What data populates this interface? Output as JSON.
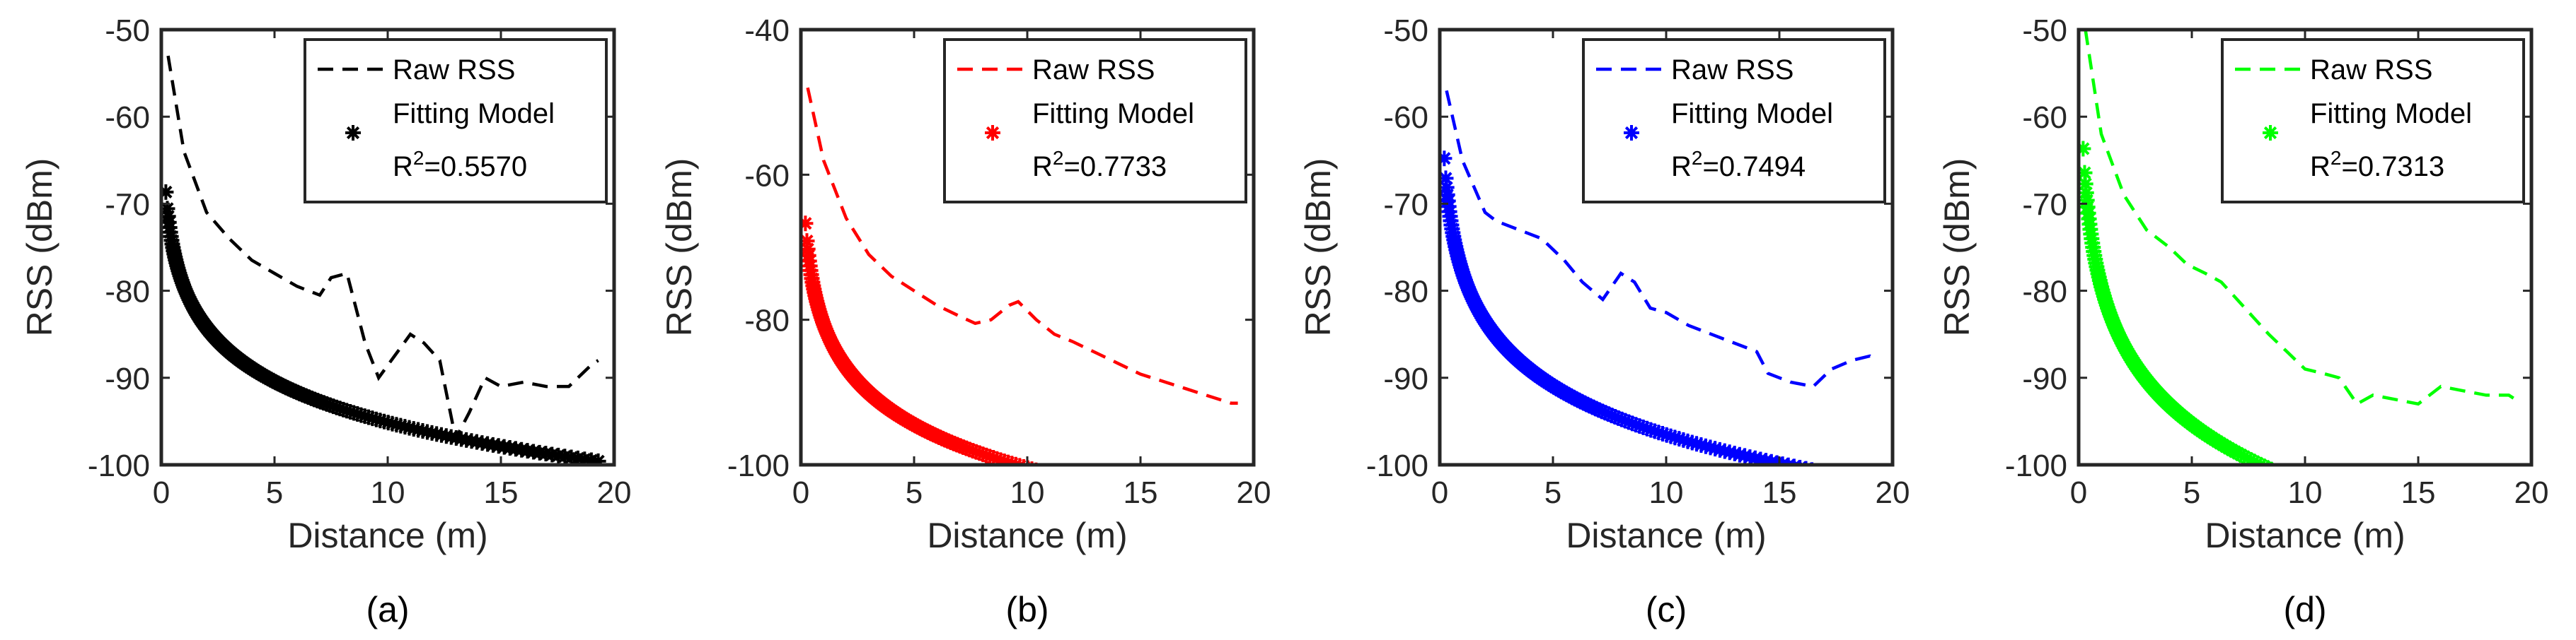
{
  "chart_data": [
    {
      "type": "line",
      "panel_label": "(a)",
      "xlabel": "Distance (m)",
      "ylabel": "RSS (dBm)",
      "xlim": [
        0,
        20
      ],
      "ylim": [
        -100,
        -50
      ],
      "xticks": [
        0,
        5,
        10,
        15,
        20
      ],
      "yticks": [
        -50,
        -60,
        -70,
        -80,
        -90,
        -100
      ],
      "color": "#000000",
      "legend": {
        "raw_label": "Raw RSS",
        "fit_label": "Fitting Model",
        "r2_prefix": "R",
        "r2_sup": "2",
        "r2_value": "=0.5570",
        "placement": "top-right"
      },
      "series": [
        {
          "name": "Raw RSS",
          "style": "dashed",
          "x": [
            0.3,
            1,
            2,
            3,
            4,
            5,
            6,
            7,
            7.5,
            8.2,
            9,
            9.6,
            10.3,
            11,
            11.6,
            12.3,
            13,
            13.6,
            14.3,
            15,
            16,
            17,
            18,
            19,
            19.3
          ],
          "y": [
            -53,
            -64,
            -71,
            -74,
            -76.5,
            -78,
            -79.5,
            -80.5,
            -78.5,
            -78,
            -86,
            -90,
            -87.5,
            -85,
            -86,
            -88,
            -97,
            -94,
            -90,
            -91,
            -90.5,
            -91,
            -91,
            -88.5,
            -88
          ]
        },
        {
          "name": "Fitting Model",
          "style": "marker-asterisk",
          "model": "log-distance",
          "a": -79.55,
          "b": -6.767,
          "x_range": [
            0.2,
            19.3
          ],
          "r2": 0.557
        }
      ]
    },
    {
      "type": "line",
      "panel_label": "(b)",
      "xlabel": "Distance (m)",
      "ylabel": "RSS (dBm)",
      "xlim": [
        0,
        20
      ],
      "ylim": [
        -100,
        -40
      ],
      "xticks": [
        0,
        5,
        10,
        15,
        20
      ],
      "yticks": [
        -40,
        -60,
        -80,
        -100
      ],
      "color": "#ff0000",
      "legend": {
        "raw_label": "Raw RSS",
        "fit_label": "Fitting Model",
        "r2_prefix": "R",
        "r2_sup": "2",
        "r2_value": "=0.7733",
        "placement": "top-right"
      },
      "series": [
        {
          "name": "Raw RSS",
          "style": "dashed",
          "x": [
            0.3,
            1,
            2,
            3,
            4,
            5,
            6,
            7,
            7.7,
            8.4,
            9.2,
            9.6,
            10.4,
            11.2,
            12,
            13,
            14,
            15,
            16,
            17,
            18,
            19,
            19.3
          ],
          "y": [
            -48,
            -58,
            -66,
            -71,
            -74,
            -76,
            -78,
            -79.5,
            -80.5,
            -80,
            -78,
            -77.5,
            -80,
            -82,
            -83,
            -84.5,
            -86,
            -87.5,
            -88.5,
            -89.5,
            -90.5,
            -91.5,
            -91.5
          ]
        },
        {
          "name": "Fitting Model",
          "style": "marker-asterisk",
          "model": "log-distance",
          "a": -80.58,
          "b": -8.62,
          "x_range": [
            0.2,
            19.3
          ],
          "r2": 0.7733
        }
      ]
    },
    {
      "type": "line",
      "panel_label": "(c)",
      "xlabel": "Distance (m)",
      "ylabel": "RSS (dBm)",
      "xlim": [
        0,
        20
      ],
      "ylim": [
        -100,
        -50
      ],
      "xticks": [
        0,
        5,
        10,
        15,
        20
      ],
      "yticks": [
        -50,
        -60,
        -70,
        -80,
        -90,
        -100
      ],
      "color": "#0000ff",
      "legend": {
        "raw_label": "Raw RSS",
        "fit_label": "Fitting Model",
        "r2_prefix": "R",
        "r2_sup": "2",
        "r2_value": "=0.7494",
        "placement": "top-right"
      },
      "series": [
        {
          "name": "Raw RSS",
          "style": "dashed",
          "x": [
            0.3,
            1,
            2,
            2.5,
            3.5,
            4.5,
            5.5,
            6.3,
            7.2,
            8,
            8.6,
            9.3,
            10,
            11,
            12,
            13,
            14,
            14.5,
            15.5,
            16.5,
            17.3,
            18.2,
            19,
            19.3
          ],
          "y": [
            -57,
            -65,
            -71,
            -72,
            -73,
            -74,
            -76.5,
            -79,
            -81,
            -78,
            -79,
            -82,
            -82.5,
            -84,
            -85,
            -86,
            -87,
            -89.5,
            -90.5,
            -91,
            -89,
            -88,
            -87.5,
            -88
          ]
        },
        {
          "name": "Fitting Model",
          "style": "marker-asterisk",
          "model": "log-distance",
          "a": -77.86,
          "b": -8.12,
          "x_range": [
            0.2,
            19.3
          ],
          "r2": 0.7494
        }
      ]
    },
    {
      "type": "line",
      "panel_label": "(d)",
      "xlabel": "Distance (m)",
      "ylabel": "RSS (dBm)",
      "xlim": [
        0,
        20
      ],
      "ylim": [
        -100,
        -50
      ],
      "xticks": [
        0,
        5,
        10,
        15,
        20
      ],
      "yticks": [
        -50,
        -60,
        -70,
        -80,
        -90,
        -100
      ],
      "color": "#00ff00",
      "legend": {
        "raw_label": "Raw RSS",
        "fit_label": "Fitting Model",
        "r2_prefix": "R",
        "r2_sup": "2",
        "r2_value": "=0.7313",
        "placement": "top-right"
      },
      "series": [
        {
          "name": "Raw RSS",
          "style": "dashed",
          "x": [
            0.3,
            1,
            2,
            3,
            4,
            4.8,
            5.6,
            6.3,
            7,
            7.7,
            8.4,
            9.2,
            10,
            10.8,
            11.5,
            12.3,
            13,
            14,
            15,
            16,
            17,
            18,
            19,
            19.3
          ],
          "y": [
            -50,
            -62,
            -69,
            -73,
            -75,
            -77,
            -78,
            -79,
            -81,
            -83,
            -85,
            -87,
            -89,
            -89.5,
            -90,
            -93,
            -92,
            -92.5,
            -93,
            -91,
            -91.5,
            -92,
            -92,
            -92.5
          ]
        },
        {
          "name": "Fitting Model",
          "style": "marker-asterisk",
          "model": "log-distance",
          "a": -79.5,
          "b": -9.83,
          "x_range": [
            0.2,
            19.3
          ],
          "r2": 0.7313
        }
      ]
    }
  ]
}
